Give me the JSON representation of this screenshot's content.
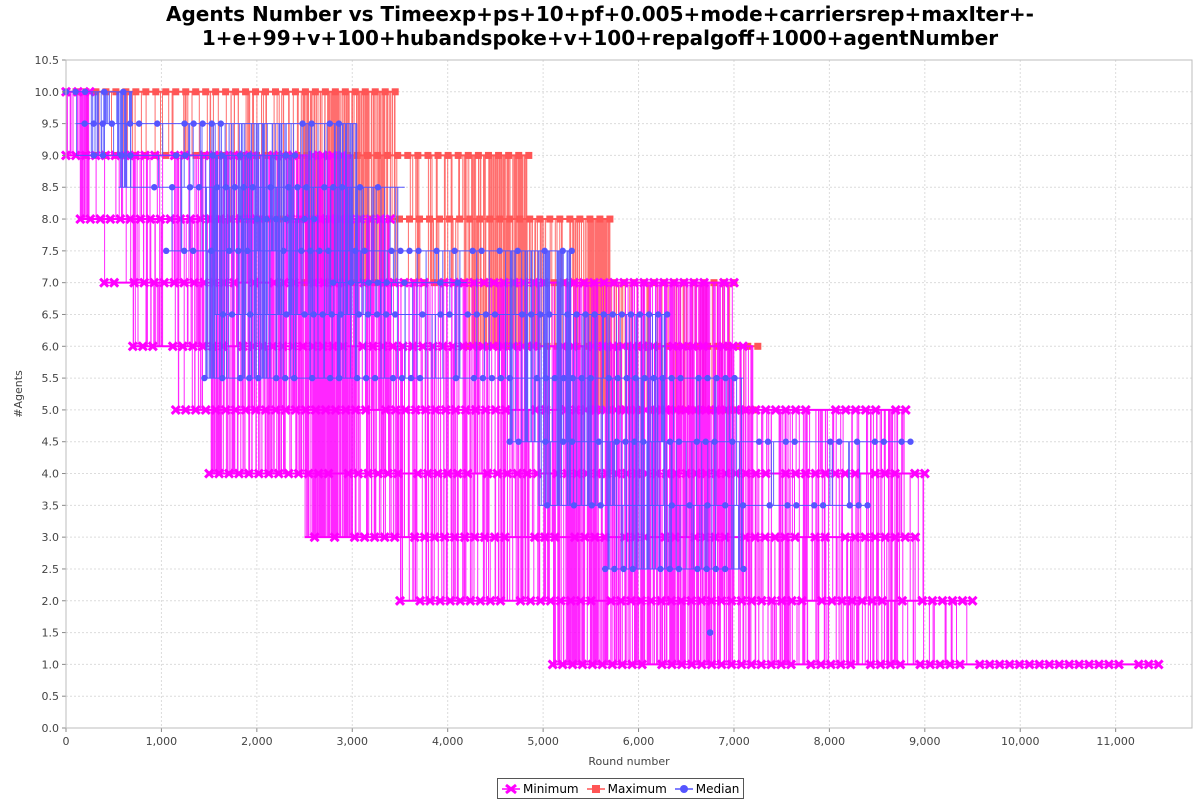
{
  "chart_data": {
    "type": "line",
    "title_lines": [
      "Agents Number vs Timeexp+ps+10+pf+0.005+mode+carriersrep+maxIter+-",
      "1+e+99+v+100+hubandspoke+v+100+repalgoff+1000+agentNumber"
    ],
    "xlabel": "Round number",
    "ylabel": "#Agents",
    "xlim": [
      0,
      11800
    ],
    "ylim": [
      0,
      10.5
    ],
    "x_ticks": [
      0,
      1000,
      2000,
      3000,
      4000,
      5000,
      6000,
      7000,
      8000,
      9000,
      10000,
      11000
    ],
    "x_tick_labels": [
      "0",
      "1,000",
      "2,000",
      "3,000",
      "4,000",
      "5,000",
      "6,000",
      "7,000",
      "8,000",
      "9,000",
      "10,000",
      "11,000"
    ],
    "y_ticks": [
      0,
      0.5,
      1,
      1.5,
      2,
      2.5,
      3,
      3.5,
      4,
      4.5,
      5,
      5.5,
      6,
      6.5,
      7,
      7.5,
      8,
      8.5,
      9,
      9.5,
      10,
      10.5
    ],
    "y_tick_labels": [
      "0.0",
      "0.5",
      "1.0",
      "1.5",
      "2.0",
      "2.5",
      "3.0",
      "3.5",
      "4.0",
      "4.5",
      "5.0",
      "5.5",
      "6.0",
      "6.5",
      "7.0",
      "7.5",
      "8.0",
      "8.5",
      "9.0",
      "9.5",
      "10.0",
      "10.5"
    ],
    "grid": true,
    "legend_position": "bottom-center",
    "series": [
      {
        "name": "Minimum",
        "color": "#ff00ff",
        "marker": "x-cross",
        "bands": [
          {
            "value": 10,
            "x_start": 0,
            "x_end": 250
          },
          {
            "value": 9,
            "x_start": 0,
            "x_end": 3000
          },
          {
            "value": 8,
            "x_start": 150,
            "x_end": 3400
          },
          {
            "value": 7,
            "x_start": 400,
            "x_end": 7000
          },
          {
            "value": 6,
            "x_start": 700,
            "x_end": 7200
          },
          {
            "value": 5,
            "x_start": 1150,
            "x_end": 8800
          },
          {
            "value": 4,
            "x_start": 1500,
            "x_end": 9000
          },
          {
            "value": 3,
            "x_start": 2500,
            "x_end": 8900
          },
          {
            "value": 2,
            "x_start": 3500,
            "x_end": 9500
          },
          {
            "value": 1,
            "x_start": 5100,
            "x_end": 11450
          }
        ]
      },
      {
        "name": "Maximum",
        "color": "#ff5555",
        "marker": "square",
        "bands": [
          {
            "value": 10,
            "x_start": 0,
            "x_end": 3450
          },
          {
            "value": 9,
            "x_start": 200,
            "x_end": 4850
          },
          {
            "value": 8,
            "x_start": 1500,
            "x_end": 5700
          },
          {
            "value": 7,
            "x_start": 2500,
            "x_end": 7000
          },
          {
            "value": 6,
            "x_start": 4200,
            "x_end": 7250
          },
          {
            "value": 5,
            "x_start": 5500,
            "x_end": 7200
          }
        ]
      },
      {
        "name": "Median",
        "color": "#5555ff",
        "marker": "circle",
        "bands": [
          {
            "value": 10,
            "x_start": 0,
            "x_end": 700
          },
          {
            "value": 9.5,
            "x_start": 100,
            "x_end": 3050
          },
          {
            "value": 9,
            "x_start": 100,
            "x_end": 2400
          },
          {
            "value": 8.5,
            "x_start": 550,
            "x_end": 3550
          },
          {
            "value": 8,
            "x_start": 1800,
            "x_end": 2600
          },
          {
            "value": 7.5,
            "x_start": 1050,
            "x_end": 5300
          },
          {
            "value": 7,
            "x_start": 2800,
            "x_end": 4200
          },
          {
            "value": 6.5,
            "x_start": 1550,
            "x_end": 6300
          },
          {
            "value": 5.5,
            "x_start": 1450,
            "x_end": 7100
          },
          {
            "value": 4.5,
            "x_start": 4650,
            "x_end": 8850
          },
          {
            "value": 3.5,
            "x_start": 4950,
            "x_end": 8400
          },
          {
            "value": 2.5,
            "x_start": 5650,
            "x_end": 7100
          },
          {
            "value": 1.5,
            "x_start": 6750,
            "x_end": 6750
          }
        ]
      }
    ]
  }
}
